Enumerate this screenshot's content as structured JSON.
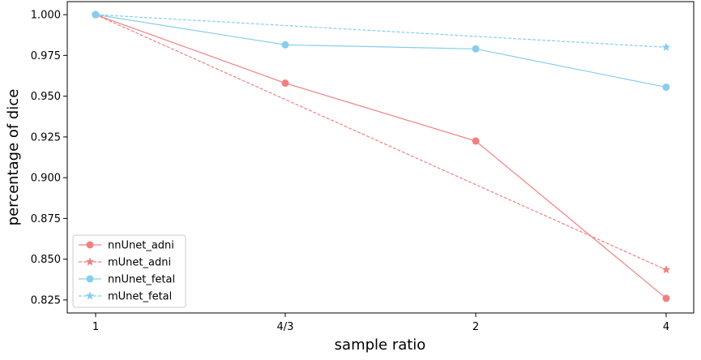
{
  "chart_data": {
    "type": "line",
    "x": [
      "1",
      "4/3",
      "2",
      "4"
    ],
    "xlabel": "sample ratio",
    "ylabel": "percentage of dice",
    "ylim": [
      0.817,
      1.008
    ],
    "yticks": [
      "0.825",
      "0.850",
      "0.875",
      "0.900",
      "0.925",
      "0.950",
      "0.975",
      "1.000"
    ],
    "grid": false,
    "legend_position": "lower-left",
    "series": [
      {
        "name": "nnUnet_adni",
        "values": [
          1.0,
          0.958,
          0.9225,
          0.826
        ],
        "color": "#F08080",
        "linestyle": "solid",
        "marker": "circle"
      },
      {
        "name": "mUnet_adni",
        "values": [
          1.0,
          null,
          null,
          0.8435
        ],
        "color": "#F08080",
        "linestyle": "dashed",
        "marker": "star"
      },
      {
        "name": "nnUnet_fetal",
        "values": [
          1.0,
          0.9815,
          0.979,
          0.9555
        ],
        "color": "#87CEEB",
        "linestyle": "solid",
        "marker": "circle"
      },
      {
        "name": "mUnet_fetal",
        "values": [
          1.0,
          null,
          null,
          0.98
        ],
        "color": "#87CEEB",
        "linestyle": "dashed",
        "marker": "star"
      }
    ]
  }
}
